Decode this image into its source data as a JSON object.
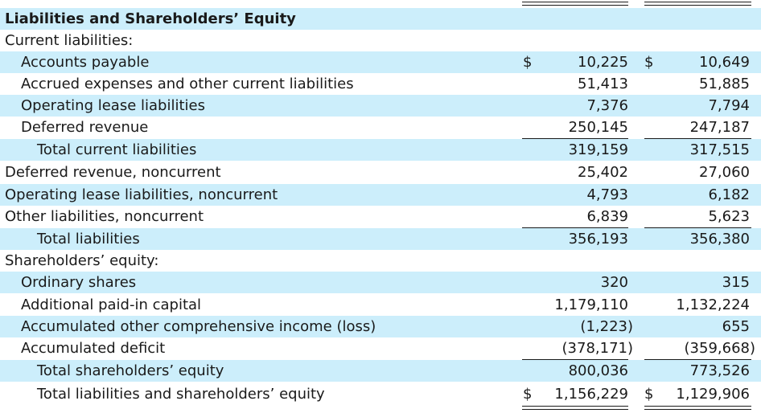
{
  "section_title": "Liabilities and Shareholders’ Equity",
  "currency_symbol": "$",
  "colors": {
    "row_shade": "#cceefb",
    "text": "#1a1a1a"
  },
  "rows": [
    {
      "label": "Current liabilities:",
      "col1": "",
      "col2": ""
    },
    {
      "label": "Accounts payable",
      "col1": "10,225",
      "col2": "10,649"
    },
    {
      "label": "Accrued expenses and other current liabilities",
      "col1": "51,413",
      "col2": "51,885"
    },
    {
      "label": "Operating lease liabilities",
      "col1": "7,376",
      "col2": "7,794"
    },
    {
      "label": "Deferred revenue",
      "col1": "250,145",
      "col2": "247,187"
    },
    {
      "label": "Total current liabilities",
      "col1": "319,159",
      "col2": "317,515"
    },
    {
      "label": "Deferred revenue, noncurrent",
      "col1": "25,402",
      "col2": "27,060"
    },
    {
      "label": "Operating lease liabilities, noncurrent",
      "col1": "4,793",
      "col2": "6,182"
    },
    {
      "label": "Other liabilities, noncurrent",
      "col1": "6,839",
      "col2": "5,623"
    },
    {
      "label": "Total liabilities",
      "col1": "356,193",
      "col2": "356,380"
    },
    {
      "label": "Shareholders’ equity:",
      "col1": "",
      "col2": ""
    },
    {
      "label": "Ordinary shares",
      "col1": "320",
      "col2": "315"
    },
    {
      "label": "Additional paid-in capital",
      "col1": "1,179,110",
      "col2": "1,132,224"
    },
    {
      "label": "Accumulated other comprehensive income (loss)",
      "col1": "(1,223)",
      "col2": "655"
    },
    {
      "label": "Accumulated deficit",
      "col1": "(378,171)",
      "col2": "(359,668)"
    },
    {
      "label": "Total shareholders’ equity",
      "col1": "800,036",
      "col2": "773,526"
    },
    {
      "label": "Total liabilities and shareholders’ equity",
      "col1": "1,156,229",
      "col2": "1,129,906"
    }
  ]
}
